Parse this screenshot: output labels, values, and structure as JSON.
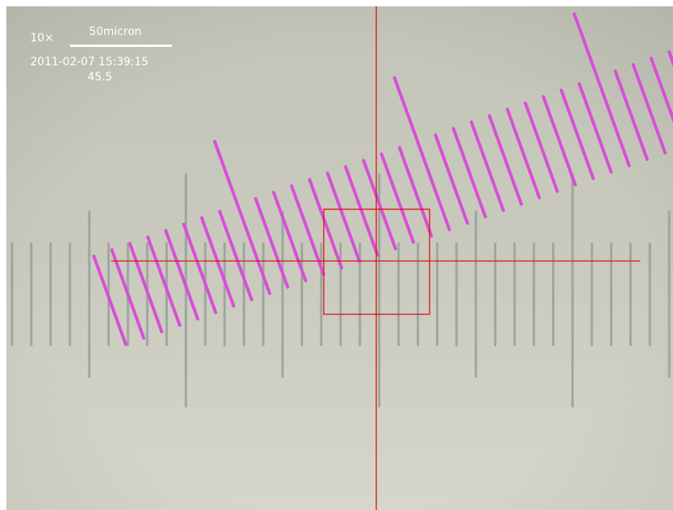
{
  "overlay": {
    "magnification": "10×",
    "scale_label": "50micron",
    "timestamp": "2011-02-07 15:39:15",
    "reading": "45.5"
  }
}
